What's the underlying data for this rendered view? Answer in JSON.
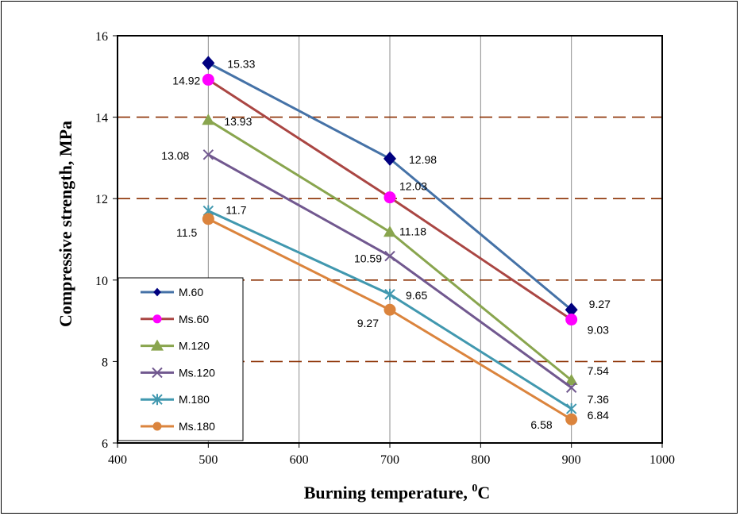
{
  "chart_data": {
    "type": "line",
    "xlabel": "Burning temperature, ",
    "xlabel_sup": "0",
    "xlabel_unit": "C",
    "ylabel": "Compressive strength, MPa",
    "xlim": [
      400,
      1000
    ],
    "ylim": [
      6,
      16
    ],
    "x_ticks": [
      "400",
      "600",
      "800",
      "1000"
    ],
    "x_ticks_all": [
      400,
      500,
      600,
      700,
      800,
      900,
      1000
    ],
    "y_ticks": [
      6,
      8,
      10,
      12,
      14,
      16
    ],
    "grid": "vertical solid gray at every 100; horizontal dashed brown at 8, 10, 12, 14",
    "legend_position": "bottom-left",
    "x": [
      500,
      700,
      900
    ],
    "series": [
      {
        "name": "M.60",
        "color": "#4572A7",
        "marker_color": "#00007F",
        "marker": "diamond",
        "values": [
          15.33,
          12.98,
          9.27
        ],
        "labels": [
          "15.33",
          "12.98",
          "9.27"
        ]
      },
      {
        "name": "Ms.60",
        "color": "#AA4643",
        "marker_color": "#FF00FF",
        "marker": "circle",
        "values": [
          14.92,
          12.03,
          9.03
        ],
        "labels": [
          "14.92",
          "12.03",
          "9.03"
        ]
      },
      {
        "name": "M.120",
        "color": "#89A54E",
        "marker_color": "#89A54E",
        "marker": "triangle",
        "values": [
          13.93,
          11.18,
          7.54
        ],
        "labels": [
          "13.93",
          "11.18",
          "7.54"
        ]
      },
      {
        "name": "Ms.120",
        "color": "#71588F",
        "marker_color": "#71588F",
        "marker": "x",
        "values": [
          13.08,
          10.59,
          7.36
        ],
        "labels": [
          "13.08",
          "10.59",
          "7.36"
        ]
      },
      {
        "name": "M.180",
        "color": "#4198AF",
        "marker_color": "#4198AF",
        "marker": "star",
        "values": [
          11.7,
          9.65,
          6.84
        ],
        "labels": [
          "11.7",
          "9.65",
          "6.84"
        ]
      },
      {
        "name": "Ms.180",
        "color": "#DB843D",
        "marker_color": "#DB843D",
        "marker": "circle",
        "values": [
          11.5,
          9.27,
          6.58
        ],
        "labels": [
          "11.5",
          "9.27",
          "6.58"
        ]
      }
    ]
  }
}
